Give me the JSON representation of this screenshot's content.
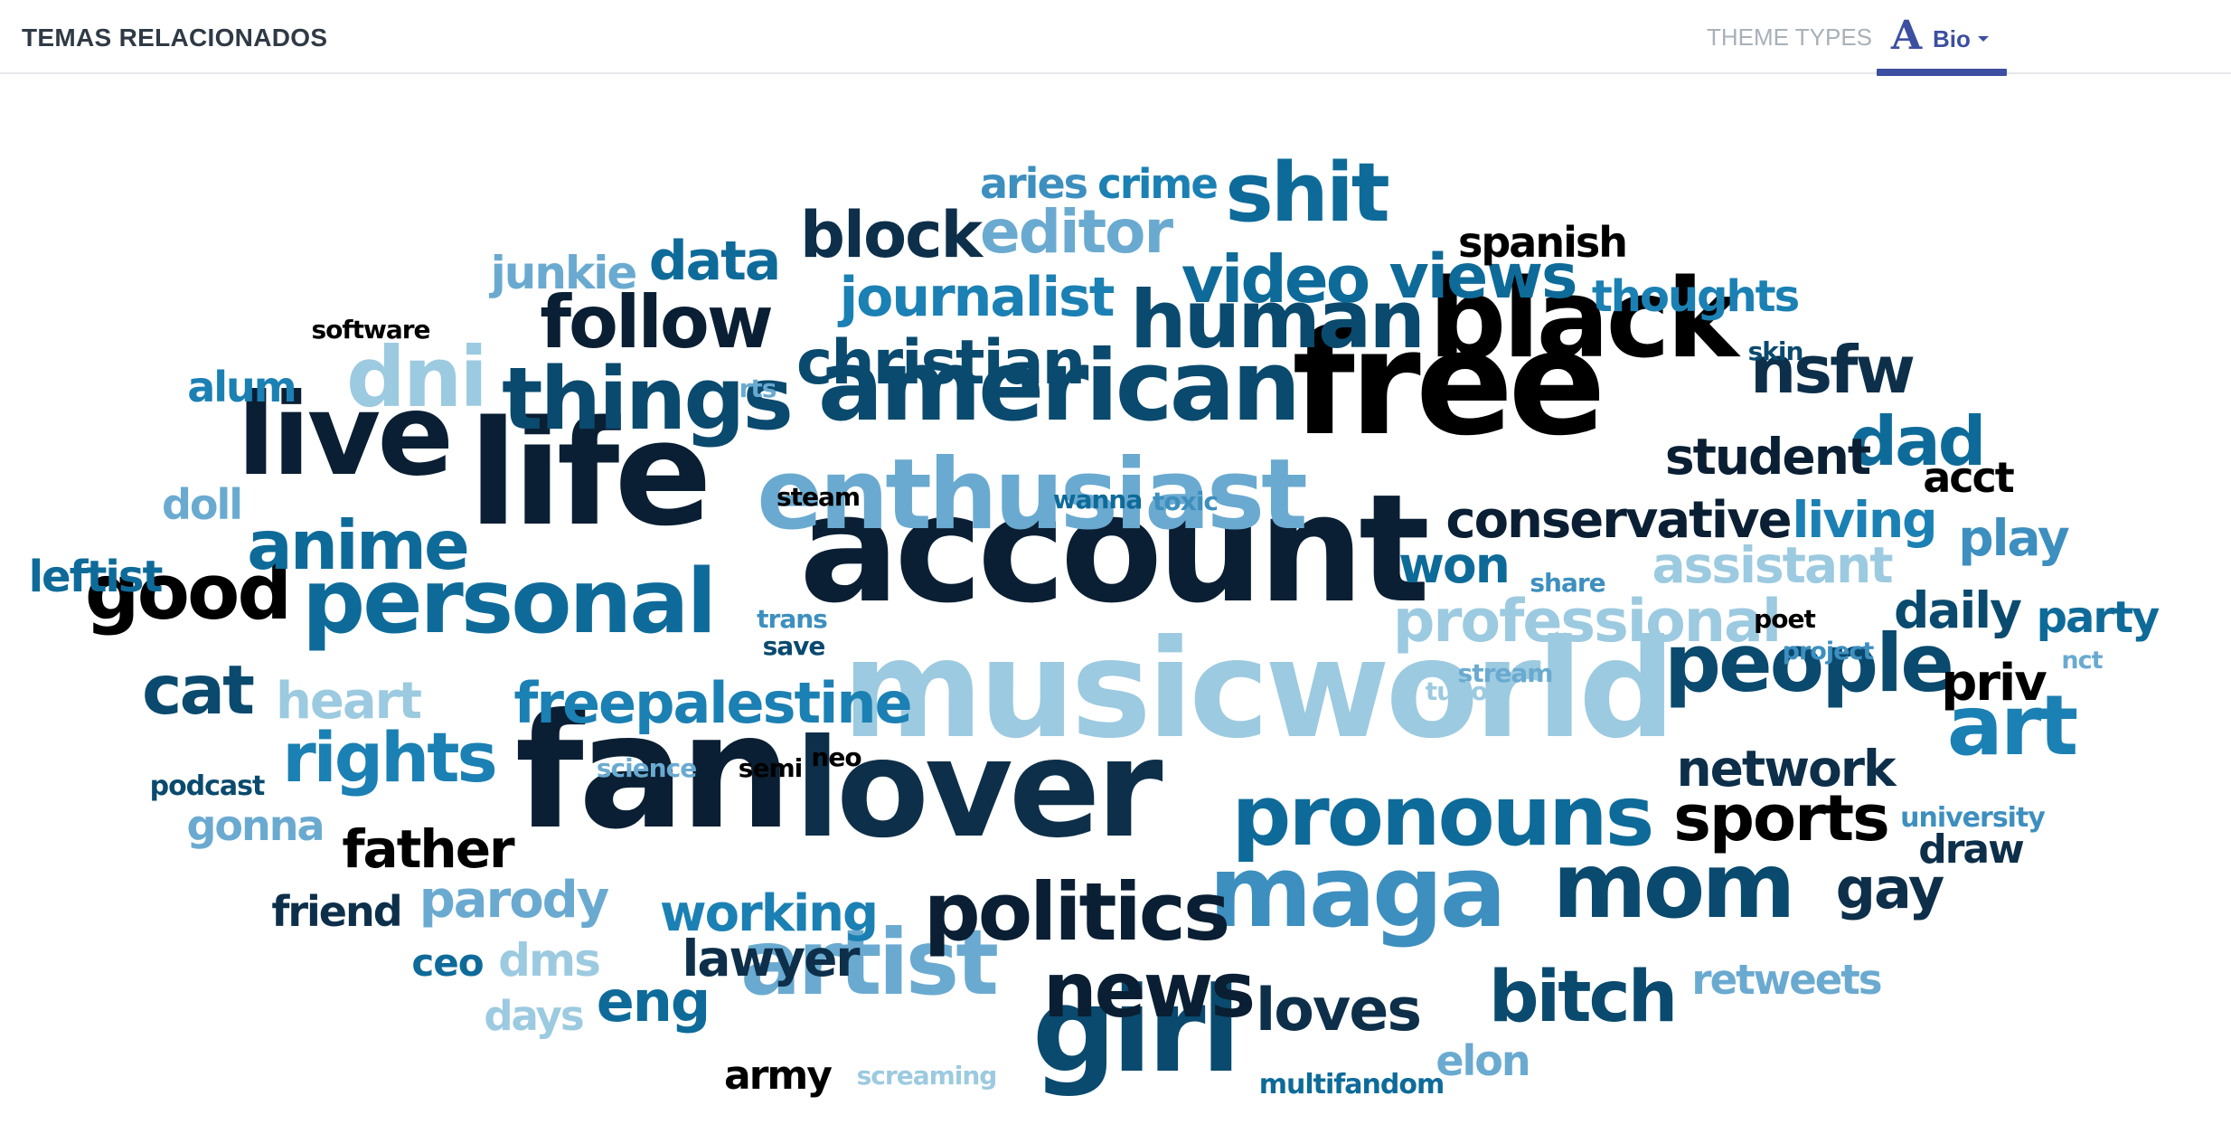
{
  "header": {
    "title": "TEMAS RELACIONADOS",
    "theme_types_label": "THEME TYPES",
    "theme_icon_glyph": "A",
    "theme_value": "Bio",
    "accent_color": "#3d4fa0"
  },
  "word_cloud": {
    "palette": [
      "#000000",
      "#0a1f33",
      "#0d2f4a",
      "#0a4a6e",
      "#0e6b99",
      "#1b80b3",
      "#3d8fbf",
      "#6aaad0",
      "#9ccae0"
    ],
    "words": [
      {
        "text": "account",
        "color": 1
      },
      {
        "text": "musicworld",
        "color": 8
      },
      {
        "text": "fan",
        "color": 1
      },
      {
        "text": "lover",
        "color": 2
      },
      {
        "text": "free",
        "color": 0
      },
      {
        "text": "life",
        "color": 1
      },
      {
        "text": "american",
        "color": 3
      },
      {
        "text": "enthusiast",
        "color": 7
      },
      {
        "text": "black",
        "color": 0
      },
      {
        "text": "girl",
        "color": 3
      },
      {
        "text": "maga",
        "color": 6
      },
      {
        "text": "mom",
        "color": 3
      },
      {
        "text": "pronouns",
        "color": 4
      },
      {
        "text": "live",
        "color": 1
      },
      {
        "text": "personal",
        "color": 4
      },
      {
        "text": "artist",
        "color": 7
      },
      {
        "text": "people",
        "color": 3
      },
      {
        "text": "politics",
        "color": 1
      },
      {
        "text": "news",
        "color": 1
      },
      {
        "text": "things",
        "color": 3
      },
      {
        "text": "human",
        "color": 3
      },
      {
        "text": "art",
        "color": 5
      },
      {
        "text": "shit",
        "color": 4
      },
      {
        "text": "good",
        "color": 0
      },
      {
        "text": "dni",
        "color": 8
      },
      {
        "text": "follow",
        "color": 1
      },
      {
        "text": "christian",
        "color": 3
      },
      {
        "text": "rights",
        "color": 5
      },
      {
        "text": "anime",
        "color": 4
      },
      {
        "text": "cat",
        "color": 3
      },
      {
        "text": "video",
        "color": 4
      },
      {
        "text": "views",
        "color": 4
      },
      {
        "text": "sports",
        "color": 0
      },
      {
        "text": "bitch",
        "color": 3
      },
      {
        "text": "dad",
        "color": 4
      },
      {
        "text": "professional",
        "color": 8
      },
      {
        "text": "conservative",
        "color": 1
      },
      {
        "text": "block",
        "color": 2
      },
      {
        "text": "editor",
        "color": 7
      },
      {
        "text": "nsfw",
        "color": 2
      },
      {
        "text": "journalist",
        "color": 5
      },
      {
        "text": "freepalestine",
        "color": 5
      },
      {
        "text": "loves",
        "color": 2
      },
      {
        "text": "assistant",
        "color": 8
      },
      {
        "text": "gay",
        "color": 2
      },
      {
        "text": "student",
        "color": 1
      },
      {
        "text": "network",
        "color": 2
      },
      {
        "text": "data",
        "color": 4
      },
      {
        "text": "lawyer",
        "color": 2
      },
      {
        "text": "working",
        "color": 5
      },
      {
        "text": "living",
        "color": 5
      },
      {
        "text": "parody",
        "color": 7
      },
      {
        "text": "father",
        "color": 0
      },
      {
        "text": "heart",
        "color": 8
      },
      {
        "text": "daily",
        "color": 3
      },
      {
        "text": "play",
        "color": 6
      },
      {
        "text": "won",
        "color": 4
      },
      {
        "text": "eng",
        "color": 4
      },
      {
        "text": "thoughts",
        "color": 5
      },
      {
        "text": "priv",
        "color": 0
      },
      {
        "text": "party",
        "color": 4
      },
      {
        "text": "retweets",
        "color": 7
      },
      {
        "text": "draw",
        "color": 2
      },
      {
        "text": "crime",
        "color": 5
      },
      {
        "text": "aries",
        "color": 6
      },
      {
        "text": "junkie",
        "color": 7
      },
      {
        "text": "spanish",
        "color": 0
      },
      {
        "text": "elon",
        "color": 7
      },
      {
        "text": "acct",
        "color": 0
      },
      {
        "text": "leftist",
        "color": 4
      },
      {
        "text": "dms",
        "color": 8
      },
      {
        "text": "friend",
        "color": 2
      },
      {
        "text": "army",
        "color": 0
      },
      {
        "text": "gonna",
        "color": 7
      },
      {
        "text": "alum",
        "color": 5
      },
      {
        "text": "doll",
        "color": 7
      },
      {
        "text": "days",
        "color": 8
      },
      {
        "text": "ceo",
        "color": 4
      },
      {
        "text": "multifandom",
        "color": 4
      },
      {
        "text": "university",
        "color": 6
      },
      {
        "text": "podcast",
        "color": 3
      },
      {
        "text": "software",
        "color": 0
      },
      {
        "text": "science",
        "color": 7
      },
      {
        "text": "screaming",
        "color": 8
      },
      {
        "text": "stream",
        "color": 7
      },
      {
        "text": "project",
        "color": 6
      },
      {
        "text": "wanna",
        "color": 4
      },
      {
        "text": "toxic",
        "color": 6
      },
      {
        "text": "steam",
        "color": 0
      },
      {
        "text": "share",
        "color": 6
      },
      {
        "text": "trans",
        "color": 6
      },
      {
        "text": "save",
        "color": 3
      },
      {
        "text": "tudo",
        "color": 8
      },
      {
        "text": "skin",
        "color": 3
      },
      {
        "text": "rts",
        "color": 7
      },
      {
        "text": "poet",
        "color": 0
      },
      {
        "text": "nct",
        "color": 7
      },
      {
        "text": "semi",
        "color": 0
      },
      {
        "text": "neo",
        "color": 0
      }
    ]
  }
}
